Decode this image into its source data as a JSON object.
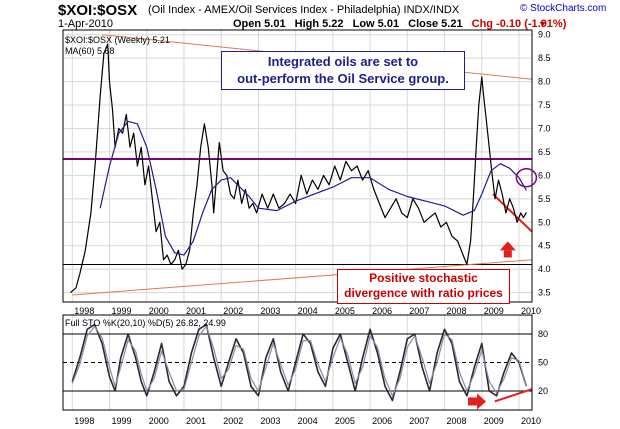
{
  "header": {
    "symbol": "$XOI:$OSX",
    "description": "(Oil Index - AMEX/Oil Services Index - Philadelphia) INDX/INDX",
    "source": "© StockCharts.com",
    "date": "1-Apr-2010",
    "open": "Open 5.01",
    "high": "High 5.22",
    "low": "Low 5.01",
    "close": "Close 5.21",
    "change": "Chg -0.10 (-1.91%)",
    "change_marker": "▼"
  },
  "annotations": {
    "top": [
      "Integrated oils are set to",
      "out-perform the Oil Service group."
    ],
    "bottom": [
      "Positive stochastic",
      "divergence with ratio prices"
    ]
  },
  "colors": {
    "price": "#000000",
    "ma": "#1e1e8a",
    "resistance": "#800080",
    "trendline": "#e07a50",
    "divergence": "#e02020",
    "sto_k": "#2a2a2a",
    "sto_d": "#8a8aaa",
    "grid": "#d8d8d8"
  },
  "chart_data": [
    {
      "type": "line",
      "legend": [
        "$XOI:$OSX (Weekly) 5.21",
        "MA(60) 5.68"
      ],
      "x_tick_labels": [
        "1998",
        "1999",
        "2000",
        "2001",
        "2002",
        "2003",
        "2004",
        "2005",
        "2006",
        "2007",
        "2008",
        "2009",
        "2010"
      ],
      "y_tick_labels": [
        "3.5",
        "4.0",
        "4.5",
        "5.0",
        "5.5",
        "6.0",
        "6.5",
        "7.0",
        "7.5",
        "8.0",
        "8.5",
        "9.0"
      ],
      "xlim": [
        1997.75,
        2010.35
      ],
      "ylim": [
        3.3,
        9.1
      ],
      "series": [
        {
          "name": "$XOI:$OSX (Weekly) 5.21",
          "x": [
            1997.95,
            1998.1,
            1998.2,
            1998.35,
            1998.5,
            1998.62,
            1998.75,
            1998.85,
            1998.95,
            1999.0,
            1999.08,
            1999.15,
            1999.25,
            1999.35,
            1999.45,
            1999.55,
            1999.65,
            1999.75,
            1999.85,
            1999.95,
            2000.05,
            2000.15,
            2000.25,
            2000.35,
            2000.45,
            2000.55,
            2000.65,
            2000.75,
            2000.85,
            2000.95,
            2001.05,
            2001.15,
            2001.25,
            2001.35,
            2001.45,
            2001.55,
            2001.65,
            2001.75,
            2001.8,
            2001.88,
            2001.95,
            2002.05,
            2002.15,
            2002.25,
            2002.35,
            2002.45,
            2002.55,
            2002.65,
            2002.75,
            2002.85,
            2002.95,
            2003.1,
            2003.25,
            2003.4,
            2003.55,
            2003.7,
            2003.85,
            2004.0,
            2004.15,
            2004.3,
            2004.45,
            2004.6,
            2004.75,
            2004.9,
            2005.05,
            2005.2,
            2005.35,
            2005.5,
            2005.65,
            2005.8,
            2005.95,
            2006.1,
            2006.25,
            2006.4,
            2006.55,
            2006.7,
            2006.85,
            2007.0,
            2007.15,
            2007.3,
            2007.45,
            2007.6,
            2007.75,
            2007.9,
            2008.05,
            2008.2,
            2008.35,
            2008.5,
            2008.6,
            2008.7,
            2008.78,
            2008.85,
            2008.92,
            2009.0,
            2009.05,
            2009.12,
            2009.2,
            2009.28,
            2009.36,
            2009.45,
            2009.55,
            2009.65,
            2009.75,
            2009.85,
            2009.95,
            2010.05,
            2010.12,
            2010.2
          ],
          "y": [
            3.5,
            3.6,
            3.9,
            4.4,
            5.2,
            6.3,
            7.7,
            8.6,
            8.8,
            8.0,
            7.4,
            6.6,
            7.0,
            6.9,
            7.3,
            6.6,
            6.9,
            6.2,
            6.6,
            5.8,
            6.2,
            5.5,
            4.8,
            5.0,
            4.2,
            4.3,
            4.1,
            4.2,
            4.4,
            4.0,
            4.1,
            4.4,
            5.2,
            5.8,
            6.6,
            7.1,
            6.6,
            5.8,
            5.2,
            6.0,
            6.7,
            6.1,
            6.0,
            5.6,
            5.5,
            5.9,
            5.4,
            5.7,
            5.3,
            5.4,
            5.2,
            5.6,
            5.3,
            5.6,
            5.3,
            5.4,
            5.6,
            5.4,
            6.0,
            5.6,
            5.9,
            5.7,
            6.0,
            5.8,
            6.2,
            5.9,
            6.3,
            6.1,
            6.2,
            5.9,
            6.1,
            5.7,
            5.4,
            5.1,
            5.3,
            5.5,
            5.2,
            5.1,
            5.5,
            5.3,
            5.0,
            5.1,
            5.2,
            4.9,
            5.0,
            4.7,
            4.6,
            4.3,
            4.1,
            4.6,
            5.6,
            6.6,
            7.5,
            8.1,
            7.7,
            7.2,
            6.6,
            6.0,
            5.5,
            5.9,
            5.6,
            5.2,
            5.5,
            5.3,
            5.0,
            5.2,
            5.1,
            5.21
          ]
        },
        {
          "name": "MA(60) 5.68",
          "x": [
            1998.75,
            1999.0,
            1999.25,
            1999.5,
            1999.75,
            2000.0,
            2000.25,
            2000.5,
            2000.75,
            2001.0,
            2001.25,
            2001.5,
            2001.75,
            2002.0,
            2002.25,
            2002.5,
            2002.75,
            2003.0,
            2003.5,
            2004.0,
            2004.5,
            2005.0,
            2005.5,
            2006.0,
            2006.5,
            2007.0,
            2007.5,
            2008.0,
            2008.5,
            2008.8,
            2009.0,
            2009.25,
            2009.5,
            2009.75,
            2010.0,
            2010.2
          ],
          "y": [
            5.3,
            6.2,
            6.9,
            7.15,
            7.1,
            6.6,
            5.7,
            4.7,
            4.35,
            4.3,
            4.6,
            5.2,
            5.7,
            5.9,
            5.95,
            5.75,
            5.55,
            5.3,
            5.25,
            5.45,
            5.6,
            5.75,
            5.95,
            5.95,
            5.7,
            5.55,
            5.45,
            5.35,
            5.15,
            5.25,
            5.6,
            6.1,
            6.25,
            6.15,
            5.95,
            5.68
          ]
        }
      ],
      "lines": [
        {
          "label": "resistance",
          "x": [
            1997.75,
            2010.35
          ],
          "y": [
            6.35,
            6.35
          ]
        },
        {
          "label": "support",
          "x": [
            1997.75,
            2010.35
          ],
          "y": [
            4.1,
            4.1
          ]
        },
        {
          "label": "trend-top",
          "x": [
            1998.8,
            2010.35
          ],
          "y": [
            9.0,
            8.05
          ]
        },
        {
          "label": "trend-bottom",
          "x": [
            1998.0,
            2010.35
          ],
          "y": [
            3.45,
            4.2
          ]
        },
        {
          "label": "divergence-price",
          "x": [
            2009.3,
            2010.35
          ],
          "y": [
            5.6,
            4.8
          ]
        }
      ]
    },
    {
      "type": "line",
      "legend": [
        "Full STO %K(20,10) %D(5) 26.82, 24.99"
      ],
      "x_tick_labels": [
        "1998",
        "1999",
        "2000",
        "2001",
        "2002",
        "2003",
        "2004",
        "2005",
        "2006",
        "2007",
        "2008",
        "2009",
        "2010"
      ],
      "y_tick_labels": [
        "20",
        "50",
        "80"
      ],
      "xlim": [
        1997.75,
        2010.35
      ],
      "ylim": [
        0,
        100
      ],
      "series": [
        {
          "name": "Full STO %K(20,10)",
          "x": [
            1998.0,
            1998.2,
            1998.4,
            1998.6,
            1998.8,
            1999.0,
            1999.15,
            1999.3,
            1999.5,
            1999.7,
            1999.85,
            2000.0,
            2000.2,
            2000.4,
            2000.6,
            2000.8,
            2001.0,
            2001.2,
            2001.4,
            2001.6,
            2001.8,
            2002.0,
            2002.2,
            2002.4,
            2002.6,
            2002.8,
            2003.0,
            2003.2,
            2003.4,
            2003.6,
            2003.8,
            2004.0,
            2004.2,
            2004.4,
            2004.6,
            2004.8,
            2005.0,
            2005.2,
            2005.4,
            2005.6,
            2005.8,
            2006.0,
            2006.2,
            2006.4,
            2006.6,
            2006.8,
            2007.0,
            2007.2,
            2007.4,
            2007.6,
            2007.8,
            2008.0,
            2008.2,
            2008.4,
            2008.6,
            2008.8,
            2009.0,
            2009.2,
            2009.4,
            2009.6,
            2009.8,
            2010.0,
            2010.2
          ],
          "y": [
            30,
            55,
            85,
            90,
            70,
            35,
            20,
            55,
            80,
            55,
            30,
            15,
            40,
            70,
            30,
            15,
            25,
            60,
            85,
            90,
            55,
            25,
            50,
            75,
            60,
            25,
            15,
            55,
            75,
            40,
            20,
            50,
            80,
            70,
            40,
            25,
            65,
            80,
            50,
            20,
            55,
            85,
            60,
            25,
            10,
            40,
            75,
            80,
            45,
            20,
            60,
            85,
            70,
            30,
            15,
            45,
            70,
            20,
            15,
            40,
            60,
            50,
            25
          ]
        },
        {
          "name": "%D(5)",
          "x": [
            1998.0,
            1998.2,
            1998.4,
            1998.6,
            1998.8,
            1999.0,
            1999.15,
            1999.3,
            1999.5,
            1999.7,
            1999.85,
            2000.0,
            2000.2,
            2000.4,
            2000.6,
            2000.8,
            2001.0,
            2001.2,
            2001.4,
            2001.6,
            2001.8,
            2002.0,
            2002.2,
            2002.4,
            2002.6,
            2002.8,
            2003.0,
            2003.2,
            2003.4,
            2003.6,
            2003.8,
            2004.0,
            2004.2,
            2004.4,
            2004.6,
            2004.8,
            2005.0,
            2005.2,
            2005.4,
            2005.6,
            2005.8,
            2006.0,
            2006.2,
            2006.4,
            2006.6,
            2006.8,
            2007.0,
            2007.2,
            2007.4,
            2007.6,
            2007.8,
            2008.0,
            2008.2,
            2008.4,
            2008.6,
            2008.8,
            2009.0,
            2009.2,
            2009.4,
            2009.6,
            2009.8,
            2010.0,
            2010.2
          ],
          "y": [
            28,
            48,
            78,
            88,
            76,
            45,
            25,
            45,
            74,
            62,
            38,
            20,
            33,
            62,
            40,
            20,
            22,
            50,
            78,
            88,
            65,
            33,
            43,
            68,
            64,
            33,
            20,
            45,
            70,
            48,
            26,
            43,
            73,
            73,
            48,
            30,
            55,
            76,
            58,
            28,
            45,
            78,
            66,
            33,
            15,
            33,
            66,
            78,
            55,
            28,
            50,
            80,
            74,
            40,
            20,
            38,
            63,
            30,
            18,
            33,
            55,
            52,
            25
          ]
        }
      ],
      "lines": [
        {
          "label": "divergence-sto",
          "x": [
            2009.35,
            2010.35
          ],
          "y": [
            9,
            22
          ]
        }
      ]
    }
  ]
}
